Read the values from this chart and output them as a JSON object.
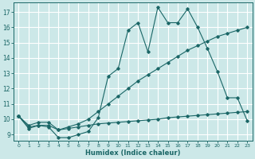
{
  "title": "",
  "xlabel": "Humidex (Indice chaleur)",
  "background_color": "#cce8e8",
  "grid_color": "#ffffff",
  "line_color": "#1a6666",
  "xlim": [
    -0.5,
    23.5
  ],
  "ylim": [
    8.6,
    17.6
  ],
  "xticks": [
    0,
    1,
    2,
    3,
    4,
    5,
    6,
    7,
    8,
    9,
    10,
    11,
    12,
    13,
    14,
    15,
    16,
    17,
    18,
    19,
    20,
    21,
    22,
    23
  ],
  "yticks": [
    9,
    10,
    11,
    12,
    13,
    14,
    15,
    16,
    17
  ],
  "series1_x": [
    0,
    1,
    2,
    3,
    4,
    5,
    6,
    7,
    8,
    9,
    10,
    11,
    12,
    13,
    14,
    15,
    16,
    17,
    18,
    19,
    20,
    21,
    22,
    23
  ],
  "series1_y": [
    10.2,
    9.4,
    9.6,
    9.5,
    8.8,
    8.8,
    9.0,
    9.2,
    10.1,
    12.8,
    13.3,
    15.8,
    16.3,
    14.4,
    17.3,
    16.3,
    16.3,
    17.2,
    16.0,
    14.6,
    13.1,
    11.4,
    11.4,
    9.9
  ],
  "series2_x": [
    0,
    1,
    2,
    3,
    4,
    5,
    6,
    7,
    8,
    9,
    10,
    11,
    12,
    13,
    14,
    15,
    16,
    17,
    18,
    19,
    20,
    21,
    22,
    23
  ],
  "series2_y": [
    10.2,
    9.6,
    9.8,
    9.8,
    9.3,
    9.5,
    9.7,
    10.0,
    10.5,
    11.0,
    11.5,
    12.0,
    12.5,
    12.9,
    13.3,
    13.7,
    14.1,
    14.5,
    14.8,
    15.1,
    15.4,
    15.6,
    15.8,
    16.0
  ],
  "series3_x": [
    0,
    1,
    2,
    3,
    4,
    5,
    6,
    7,
    8,
    9,
    10,
    11,
    12,
    13,
    14,
    15,
    16,
    17,
    18,
    19,
    20,
    21,
    22,
    23
  ],
  "series3_y": [
    10.2,
    9.5,
    9.6,
    9.6,
    9.3,
    9.4,
    9.5,
    9.6,
    9.7,
    9.75,
    9.8,
    9.85,
    9.9,
    9.95,
    10.0,
    10.1,
    10.15,
    10.2,
    10.25,
    10.3,
    10.35,
    10.4,
    10.45,
    10.5
  ]
}
